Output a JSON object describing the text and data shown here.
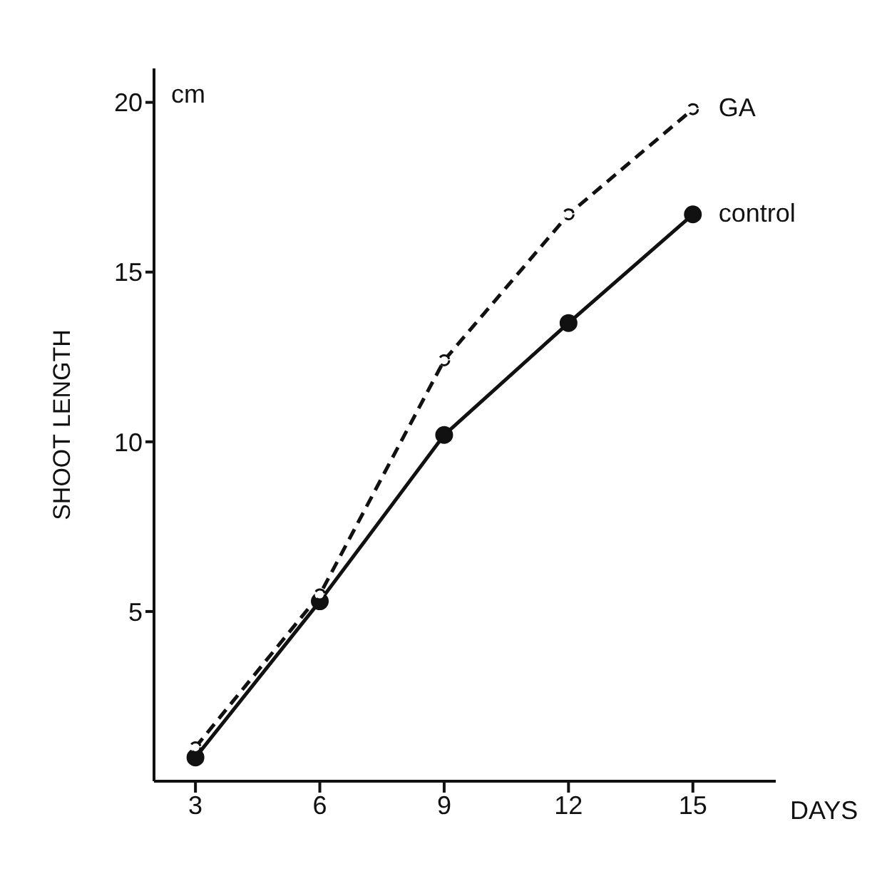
{
  "chart_data": {
    "type": "line",
    "xlabel": "DAYS",
    "ylabel": "SHOOT LENGTH",
    "annotations": [
      "cm"
    ],
    "x": [
      3,
      6,
      9,
      12,
      15
    ],
    "series": [
      {
        "name": "GA",
        "color": "#111111",
        "values": [
          1.0,
          5.5,
          12.4,
          16.7,
          19.8
        ],
        "line_style": "dashed",
        "marker": "circle"
      },
      {
        "name": "control",
        "color": "#111111",
        "values": [
          0.7,
          5.3,
          10.2,
          13.5,
          16.7
        ],
        "line_style": "solid",
        "marker": "circle"
      }
    ],
    "xlim": [
      2,
      17
    ],
    "xticks": [
      3,
      6,
      9,
      12,
      15
    ],
    "ylim": [
      0,
      21
    ],
    "yticks": [
      5,
      10,
      15,
      20
    ],
    "grid": false,
    "legend": false
  }
}
